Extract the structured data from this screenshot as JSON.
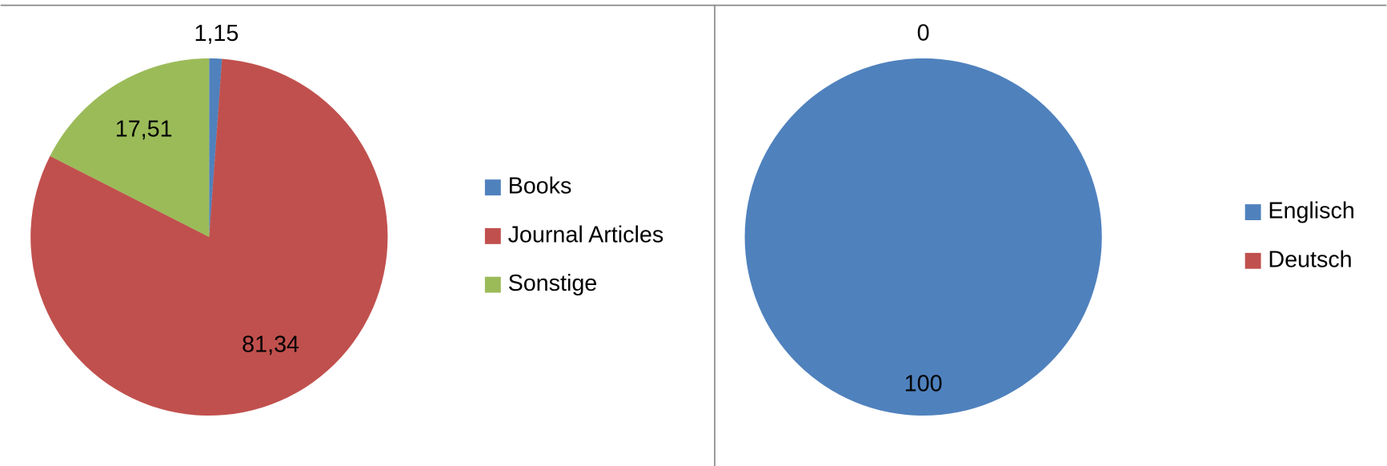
{
  "chart_data": [
    {
      "type": "pie",
      "categories": [
        "Books",
        "Journal Articles",
        "Sonstige"
      ],
      "values": [
        1.15,
        81.34,
        17.51
      ],
      "value_labels": [
        "1,15",
        "81,34",
        "17,51"
      ],
      "colors": [
        "#4f81bd",
        "#c0504d",
        "#9bbb59"
      ],
      "legend": "right"
    },
    {
      "type": "pie",
      "categories": [
        "Englisch",
        "Deutsch"
      ],
      "values": [
        100,
        0
      ],
      "colors": [
        "#4f81bd",
        "#c0504d"
      ],
      "legend": "right"
    }
  ]
}
